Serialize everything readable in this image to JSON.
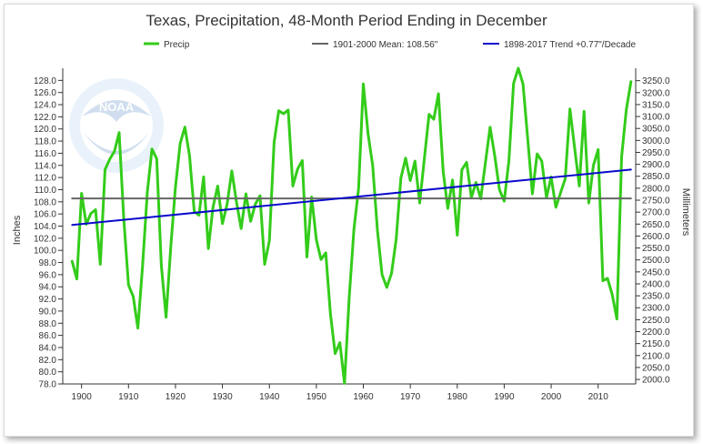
{
  "chart_data": {
    "type": "line",
    "title": "Texas, Precipitation, 48-Month Period Ending in December",
    "ylabel": "Inches",
    "y2label": "Millimeters",
    "xlabel": "",
    "xlim": [
      1896,
      2018
    ],
    "ylim": [
      78.0,
      130.0
    ],
    "y2lim": [
      1981.2,
      3302.0
    ],
    "x_ticks": [
      1900,
      1910,
      1920,
      1930,
      1940,
      1950,
      1960,
      1970,
      1980,
      1990,
      2000,
      2010
    ],
    "y_ticks": [
      "78.0",
      "80.0",
      "82.0",
      "84.0",
      "86.0",
      "88.0",
      "90.0",
      "92.0",
      "94.0",
      "96.0",
      "98.0",
      "100.0",
      "102.0",
      "104.0",
      "106.0",
      "108.0",
      "110.0",
      "112.0",
      "114.0",
      "116.0",
      "118.0",
      "120.0",
      "122.0",
      "124.0",
      "126.0",
      "128.0"
    ],
    "y2_ticks": [
      "2000.0",
      "2050.0",
      "2100.0",
      "2150.0",
      "2200.0",
      "2250.0",
      "2300.0",
      "2350.0",
      "2400.0",
      "2450.0",
      "2500.0",
      "2550.0",
      "2600.0",
      "2650.0",
      "2700.0",
      "2750.0",
      "2800.0",
      "2850.0",
      "2900.0",
      "2950.0",
      "3000.0",
      "3050.0",
      "3100.0",
      "3150.0",
      "3200.0",
      "3250.0"
    ],
    "grid": false,
    "legend_position": "top",
    "series": [
      {
        "name": "Precip",
        "color": "#33cc1a",
        "x": [
          1898,
          1899,
          1900,
          1901,
          1902,
          1903,
          1904,
          1905,
          1906,
          1907,
          1908,
          1909,
          1910,
          1911,
          1912,
          1913,
          1914,
          1915,
          1916,
          1917,
          1918,
          1919,
          1920,
          1921,
          1922,
          1923,
          1924,
          1925,
          1926,
          1927,
          1928,
          1929,
          1930,
          1931,
          1932,
          1933,
          1934,
          1935,
          1936,
          1937,
          1938,
          1939,
          1940,
          1941,
          1942,
          1943,
          1944,
          1945,
          1946,
          1947,
          1948,
          1949,
          1950,
          1951,
          1952,
          1953,
          1954,
          1955,
          1956,
          1957,
          1958,
          1959,
          1960,
          1961,
          1962,
          1963,
          1964,
          1965,
          1966,
          1967,
          1968,
          1969,
          1970,
          1971,
          1972,
          1973,
          1974,
          1975,
          1976,
          1977,
          1978,
          1979,
          1980,
          1981,
          1982,
          1983,
          1984,
          1985,
          1986,
          1987,
          1988,
          1989,
          1990,
          1991,
          1992,
          1993,
          1994,
          1995,
          1996,
          1997,
          1998,
          1999,
          2000,
          2001,
          2002,
          2003,
          2004,
          2005,
          2006,
          2007,
          2008,
          2009,
          2010,
          2011,
          2012,
          2013,
          2014,
          2015,
          2016,
          2017
        ],
        "values": [
          98.2,
          95.3,
          109.4,
          104.3,
          106.1,
          106.7,
          97.7,
          113.3,
          115.0,
          116.3,
          119.4,
          105.2,
          94.3,
          92.4,
          87.2,
          97.5,
          109.6,
          116.7,
          115.1,
          97.5,
          89.0,
          100.6,
          110.4,
          117.6,
          120.3,
          115.6,
          106.4,
          105.8,
          112.1,
          100.3,
          107.1,
          110.6,
          104.4,
          107.6,
          113.1,
          107.9,
          103.6,
          109.3,
          104.8,
          107.6,
          109.0,
          97.7,
          101.6,
          117.8,
          123.0,
          122.5,
          123.1,
          110.6,
          113.4,
          114.8,
          98.9,
          108.8,
          101.7,
          98.5,
          99.6,
          89.6,
          83.0,
          84.8,
          78.1,
          92.3,
          103.5,
          110.2,
          127.4,
          119.2,
          114.0,
          103.3,
          96.0,
          93.9,
          96.2,
          101.8,
          111.9,
          115.2,
          111.5,
          114.7,
          107.8,
          115.1,
          122.4,
          121.6,
          125.8,
          113.0,
          106.9,
          111.6,
          102.5,
          113.3,
          114.5,
          108.7,
          111.2,
          108.5,
          114.5,
          120.3,
          115.5,
          110.0,
          108.1,
          114.8,
          127.5,
          130.0,
          127.4,
          118.5,
          109.3,
          115.9,
          114.7,
          108.7,
          112.1,
          107.1,
          109.5,
          111.8,
          123.3,
          116.8,
          110.6,
          122.9,
          107.8,
          114.0,
          116.6,
          95.0,
          95.4,
          92.7,
          88.7,
          115.4,
          123.2,
          127.8
        ]
      },
      {
        "name": "1901-2000 Mean: 108.56\"",
        "color": "#666666",
        "x": [
          1898,
          2017
        ],
        "values": [
          108.56,
          108.56
        ]
      },
      {
        "name": "1898-2017 Trend +0.77\"/Decade",
        "color": "#0a0acc",
        "x": [
          1898,
          2017
        ],
        "values": [
          104.2,
          113.3
        ]
      }
    ]
  },
  "watermark": "NATIONAL OCEANIC AND ATMOSPHERIC ADMINISTRATION",
  "logo_text": "NOAA"
}
